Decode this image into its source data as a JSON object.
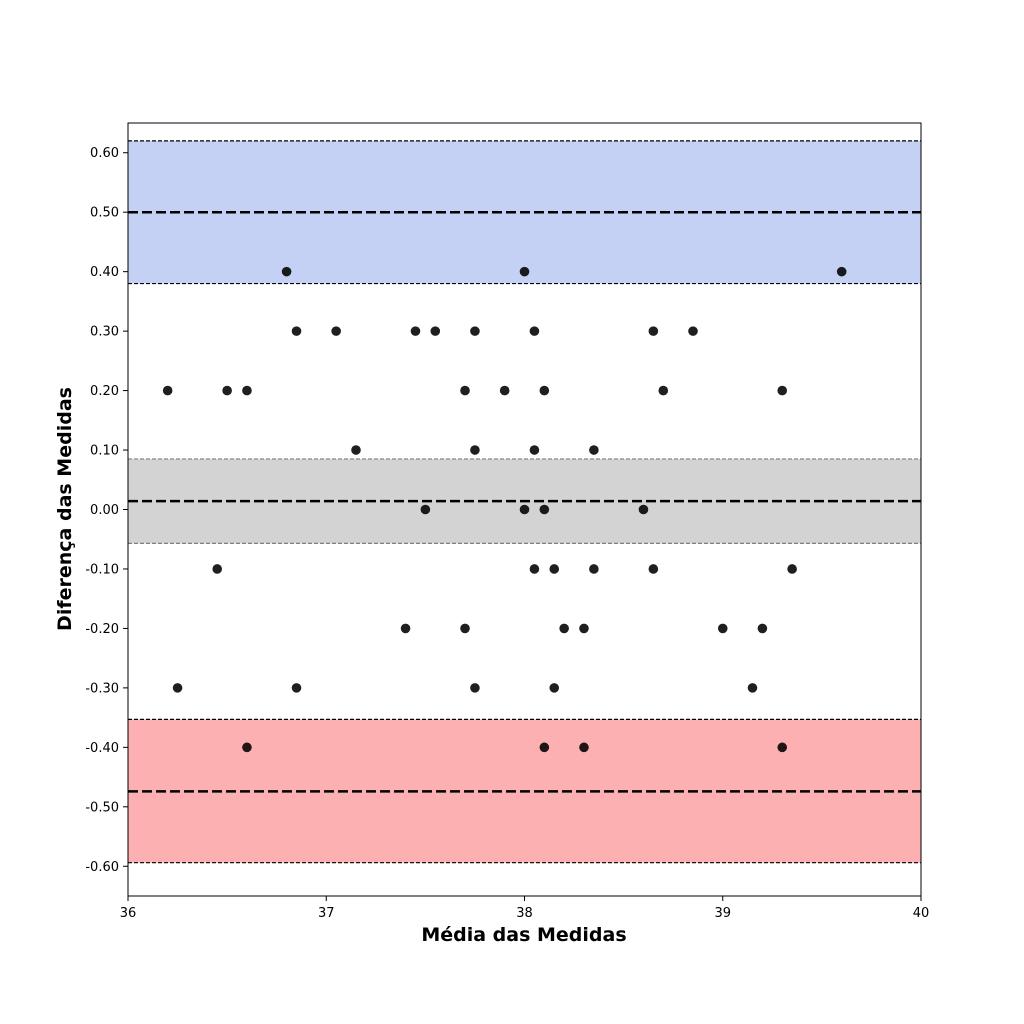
{
  "chart_data": {
    "type": "scatter",
    "title": "",
    "xlabel": "Média das Medidas",
    "ylabel": "Diferença das Medidas",
    "xlim": [
      36,
      40
    ],
    "ylim": [
      -0.65,
      0.65
    ],
    "x_ticks": [
      {
        "value": 36,
        "label": "36"
      },
      {
        "value": 37,
        "label": "37"
      },
      {
        "value": 38,
        "label": "38"
      },
      {
        "value": 39,
        "label": "39"
      },
      {
        "value": 40,
        "label": "40"
      }
    ],
    "y_ticks": [
      {
        "value": 0.6,
        "label": "0.60"
      },
      {
        "value": 0.5,
        "label": "0.50"
      },
      {
        "value": 0.4,
        "label": "0.40"
      },
      {
        "value": 0.3,
        "label": "0.30"
      },
      {
        "value": 0.2,
        "label": "0.20"
      },
      {
        "value": 0.1,
        "label": "0.10"
      },
      {
        "value": 0.0,
        "label": "0.00"
      },
      {
        "value": -0.1,
        "label": "-0.10"
      },
      {
        "value": -0.2,
        "label": "-0.20"
      },
      {
        "value": -0.3,
        "label": "-0.30"
      },
      {
        "value": -0.4,
        "label": "-0.40"
      },
      {
        "value": -0.5,
        "label": "-0.50"
      },
      {
        "value": -0.6,
        "label": "-0.60"
      }
    ],
    "grid": false,
    "bands": [
      {
        "name": "upper-limit",
        "lower": 0.38,
        "upper": 0.62,
        "center": 0.5,
        "color": "#c5d1f4"
      },
      {
        "name": "mean",
        "lower": -0.057,
        "upper": 0.085,
        "center": 0.014,
        "color": "#d3d3d3"
      },
      {
        "name": "lower-limit",
        "lower": -0.594,
        "upper": -0.353,
        "center": -0.474,
        "color": "#fdb0b2"
      }
    ],
    "point_color": "#000000",
    "points": [
      {
        "x": 36.8,
        "y": 0.4
      },
      {
        "x": 38.0,
        "y": 0.4
      },
      {
        "x": 39.6,
        "y": 0.4
      },
      {
        "x": 36.85,
        "y": 0.3
      },
      {
        "x": 37.05,
        "y": 0.3
      },
      {
        "x": 37.45,
        "y": 0.3
      },
      {
        "x": 37.55,
        "y": 0.3
      },
      {
        "x": 37.75,
        "y": 0.3
      },
      {
        "x": 38.05,
        "y": 0.3
      },
      {
        "x": 38.65,
        "y": 0.3
      },
      {
        "x": 38.85,
        "y": 0.3
      },
      {
        "x": 36.2,
        "y": 0.2
      },
      {
        "x": 36.5,
        "y": 0.2
      },
      {
        "x": 36.6,
        "y": 0.2
      },
      {
        "x": 37.7,
        "y": 0.2
      },
      {
        "x": 37.9,
        "y": 0.2
      },
      {
        "x": 38.1,
        "y": 0.2
      },
      {
        "x": 38.7,
        "y": 0.2
      },
      {
        "x": 39.3,
        "y": 0.2
      },
      {
        "x": 37.15,
        "y": 0.1
      },
      {
        "x": 37.75,
        "y": 0.1
      },
      {
        "x": 38.05,
        "y": 0.1
      },
      {
        "x": 38.35,
        "y": 0.1
      },
      {
        "x": 37.5,
        "y": 0.0
      },
      {
        "x": 38.0,
        "y": 0.0
      },
      {
        "x": 38.1,
        "y": 0.0
      },
      {
        "x": 38.6,
        "y": 0.0
      },
      {
        "x": 36.45,
        "y": -0.1
      },
      {
        "x": 38.05,
        "y": -0.1
      },
      {
        "x": 38.15,
        "y": -0.1
      },
      {
        "x": 38.35,
        "y": -0.1
      },
      {
        "x": 38.65,
        "y": -0.1
      },
      {
        "x": 39.35,
        "y": -0.1
      },
      {
        "x": 37.4,
        "y": -0.2
      },
      {
        "x": 37.7,
        "y": -0.2
      },
      {
        "x": 38.2,
        "y": -0.2
      },
      {
        "x": 38.3,
        "y": -0.2
      },
      {
        "x": 39.0,
        "y": -0.2
      },
      {
        "x": 39.2,
        "y": -0.2
      },
      {
        "x": 36.25,
        "y": -0.3
      },
      {
        "x": 36.85,
        "y": -0.3
      },
      {
        "x": 37.75,
        "y": -0.3
      },
      {
        "x": 38.15,
        "y": -0.3
      },
      {
        "x": 39.15,
        "y": -0.3
      },
      {
        "x": 36.6,
        "y": -0.4
      },
      {
        "x": 38.1,
        "y": -0.4
      },
      {
        "x": 38.3,
        "y": -0.4
      },
      {
        "x": 39.3,
        "y": -0.4
      }
    ]
  }
}
